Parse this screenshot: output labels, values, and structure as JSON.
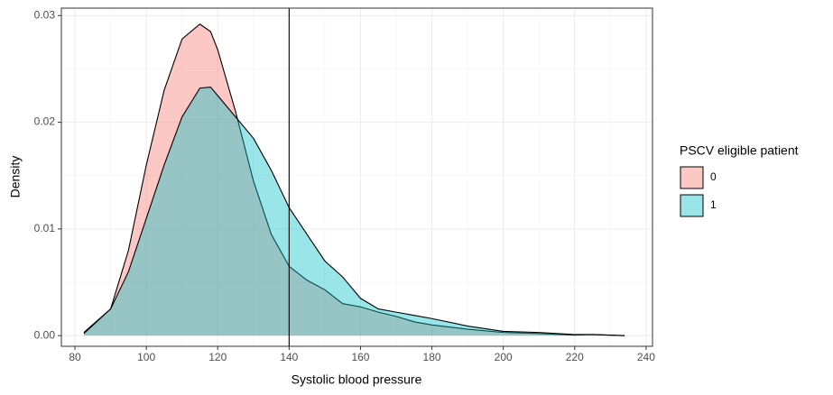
{
  "chart_data": {
    "type": "area",
    "x_label": "Systolic blood pressure",
    "y_label": "Density",
    "legend_title": "PSCV eligible patient",
    "legend_position": "right",
    "x": [
      82.5,
      90,
      95,
      100,
      105,
      110,
      115,
      118,
      120,
      125,
      130,
      135,
      140,
      145,
      150,
      155,
      160,
      165,
      170,
      175,
      180,
      190,
      200,
      210,
      220,
      225,
      234
    ],
    "series": [
      {
        "name": "0",
        "color": "#F8766D",
        "values": [
          0.0003,
          0.0025,
          0.008,
          0.016,
          0.023,
          0.0278,
          0.0292,
          0.0285,
          0.0268,
          0.021,
          0.0145,
          0.0095,
          0.0065,
          0.0052,
          0.0043,
          0.003,
          0.0027,
          0.0022,
          0.0018,
          0.0013,
          0.001,
          0.0006,
          0.0003,
          0.0002,
          5e-05,
          0.0001,
          0.0
        ]
      },
      {
        "name": "1",
        "color": "#00BFC4",
        "values": [
          0.0002,
          0.0025,
          0.006,
          0.011,
          0.016,
          0.0205,
          0.0232,
          0.0233,
          0.0225,
          0.0205,
          0.0185,
          0.0155,
          0.012,
          0.0095,
          0.007,
          0.0055,
          0.0035,
          0.0025,
          0.0022,
          0.0019,
          0.0016,
          0.0009,
          0.0004,
          0.0003,
          0.0001,
          0.0001,
          0.0
        ]
      }
    ],
    "vline": 140,
    "xlim": [
      76.2,
      241.8
    ],
    "xticks": [
      80,
      100,
      120,
      140,
      160,
      180,
      200,
      220,
      240
    ],
    "ylim": [
      -0.001,
      0.0307
    ],
    "yticks": [
      {
        "value": 0,
        "label": "0.00"
      },
      {
        "value": 0.01,
        "label": "0.01"
      },
      {
        "value": 0.02,
        "label": "0.02"
      },
      {
        "value": 0.03,
        "label": "0.03"
      }
    ],
    "grid": true
  }
}
